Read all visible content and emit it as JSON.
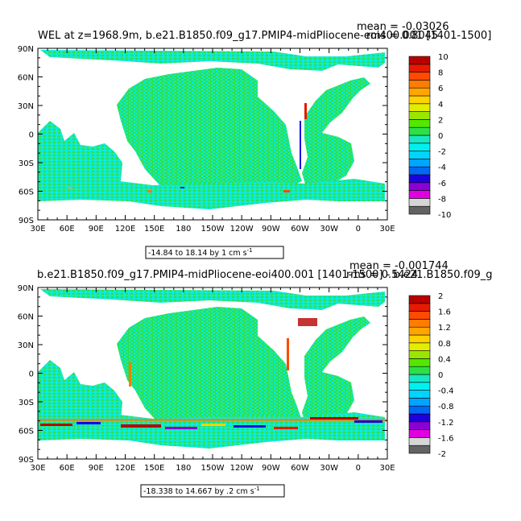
{
  "colors": {
    "background": "#ffffff",
    "land": "#ffffff",
    "frame": "#000000"
  },
  "panels": [
    {
      "title": "WEL at z=1968.9m, b.e21.B1850.f09_g17.PMIP4-midPliocene-eoi400.001 [1401-1500]",
      "mean_text": "mean = -0.03026",
      "rms_text": "rms = 0.8045",
      "info_text": "-14.84 to 18.14 by 1 cm s",
      "info_superscript": "-1",
      "colorbar_labels": [
        "10",
        "8",
        "6",
        "4",
        "2",
        "0",
        "-2",
        "-4",
        "-6",
        "-8",
        "-10"
      ]
    },
    {
      "title": "b.e21.B1850.f09_g17.PMIP4-midPliocene-eoi400.001 [1401-1500] - b.e21.B1850.f09_g",
      "mean_text": "mean = -0.001744",
      "rms_text": "rms = 0.5424",
      "info_text": "-18.338 to 14.667 by .2 cm s",
      "info_superscript": "-1",
      "colorbar_labels": [
        "2",
        "1.6",
        "1.2",
        "0.8",
        "0.4",
        "0",
        "-0.4",
        "-0.8",
        "-1.2",
        "-1.6",
        "-2"
      ]
    }
  ],
  "chart_data": [
    {
      "type": "heatmap",
      "title": "WEL at z=1968.9m, b.e21.B1850.f09_g17.PMIP4-midPliocene-eoi400.001 [1401-1500]",
      "units": "cm s-1",
      "xticks": [
        "30E",
        "60E",
        "90E",
        "120E",
        "150E",
        "180",
        "150W",
        "120W",
        "90W",
        "60W",
        "30W",
        "0",
        "30E"
      ],
      "yticks": [
        "90N",
        "60N",
        "30N",
        "0",
        "30S",
        "60S",
        "90S"
      ],
      "xlim": [
        30,
        390
      ],
      "ylim": [
        -90,
        90
      ],
      "data_range": [
        -14.84,
        18.14
      ],
      "contour_interval": 1,
      "mean": -0.03026,
      "rms": 0.8045,
      "colorbar": {
        "levels": [
          -10,
          -8,
          -6,
          -4,
          -2,
          0,
          2,
          4,
          6,
          8,
          10
        ],
        "colors": [
          "#636363",
          "#d6d6d6",
          "#e000e0",
          "#8c00d6",
          "#1e00dc",
          "#0068f6",
          "#00a5ff",
          "#00d4ff",
          "#00f0f0",
          "#17e8c2",
          "#2de048",
          "#52e800",
          "#9ae600",
          "#e2ee00",
          "#ffd200",
          "#ffa600",
          "#ff7c00",
          "#ff4a00",
          "#e61a00",
          "#b80000"
        ]
      }
    },
    {
      "type": "heatmap",
      "title": "b.e21.B1850.f09_g17.PMIP4-midPliocene-eoi400.001 [1401-1500] - b.e21.B1850.f09_g",
      "units": "cm s-1",
      "xticks": [
        "30E",
        "60E",
        "90E",
        "120E",
        "150E",
        "180",
        "150W",
        "120W",
        "90W",
        "60W",
        "30W",
        "0",
        "30E"
      ],
      "yticks": [
        "90N",
        "60N",
        "30N",
        "0",
        "30S",
        "60S",
        "90S"
      ],
      "xlim": [
        30,
        390
      ],
      "ylim": [
        -90,
        90
      ],
      "data_range": [
        -18.338,
        14.667
      ],
      "contour_interval": 0.2,
      "mean": -0.001744,
      "rms": 0.5424,
      "colorbar": {
        "levels": [
          -2,
          -1.6,
          -1.2,
          -0.8,
          -0.4,
          0,
          0.4,
          0.8,
          1.2,
          1.6,
          2
        ],
        "colors": [
          "#636363",
          "#d6d6d6",
          "#e000e0",
          "#8c00d6",
          "#1e00dc",
          "#0068f6",
          "#00a5ff",
          "#00d4ff",
          "#00f0f0",
          "#17e8c2",
          "#2de048",
          "#52e800",
          "#9ae600",
          "#e2ee00",
          "#ffd200",
          "#ffa600",
          "#ff7c00",
          "#ff4a00",
          "#e61a00",
          "#b80000"
        ]
      }
    }
  ]
}
